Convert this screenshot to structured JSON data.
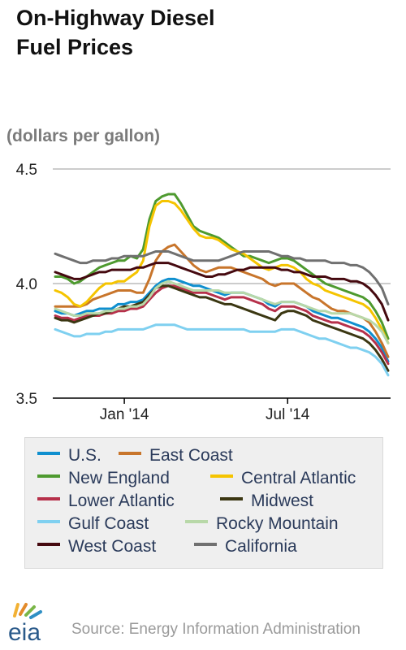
{
  "title_line1": "On-Highway Diesel",
  "title_line2": "Fuel Prices",
  "subtitle": "(dollars per gallon)",
  "source": "Source: Energy Information Administration",
  "logo_text": "eia",
  "chart_data": {
    "type": "line",
    "ylim": [
      3.5,
      4.5
    ],
    "y_ticks": [
      "3.5",
      "4.0",
      "4.5"
    ],
    "x_ticks": [
      "Jan '14",
      "Jul '14"
    ],
    "x_tick_index": [
      11,
      37
    ],
    "grid": true,
    "legend_placement": "bottom",
    "x": [
      0,
      1,
      2,
      3,
      4,
      5,
      6,
      7,
      8,
      9,
      10,
      11,
      12,
      13,
      14,
      15,
      16,
      17,
      18,
      19,
      20,
      21,
      22,
      23,
      24,
      25,
      26,
      27,
      28,
      29,
      30,
      31,
      32,
      33,
      34,
      35,
      36,
      37,
      38,
      39,
      40,
      41,
      42,
      43,
      44,
      45,
      46,
      47,
      48,
      49,
      50,
      51,
      52,
      53
    ],
    "series": [
      {
        "name": "U.S.",
        "color": "#0f8fcf",
        "values": [
          3.88,
          3.87,
          3.87,
          3.86,
          3.87,
          3.88,
          3.88,
          3.89,
          3.89,
          3.89,
          3.91,
          3.91,
          3.92,
          3.92,
          3.93,
          3.96,
          3.99,
          4.01,
          4.02,
          4.02,
          4.01,
          4.0,
          3.99,
          3.99,
          3.98,
          3.97,
          3.96,
          3.95,
          3.96,
          3.96,
          3.96,
          3.95,
          3.94,
          3.93,
          3.91,
          3.9,
          3.92,
          3.92,
          3.92,
          3.91,
          3.9,
          3.88,
          3.87,
          3.86,
          3.85,
          3.85,
          3.84,
          3.83,
          3.82,
          3.81,
          3.79,
          3.76,
          3.72,
          3.66
        ]
      },
      {
        "name": "East Coast",
        "color": "#c8752b",
        "values": [
          3.9,
          3.9,
          3.9,
          3.9,
          3.9,
          3.91,
          3.93,
          3.94,
          3.95,
          3.96,
          3.97,
          3.97,
          3.97,
          3.96,
          3.96,
          4.02,
          4.1,
          4.14,
          4.16,
          4.17,
          4.14,
          4.11,
          4.08,
          4.06,
          4.05,
          4.06,
          4.07,
          4.07,
          4.07,
          4.06,
          4.05,
          4.04,
          4.03,
          4.02,
          4.0,
          3.99,
          4.0,
          4.0,
          4.0,
          3.98,
          3.96,
          3.94,
          3.93,
          3.91,
          3.89,
          3.88,
          3.88,
          3.87,
          3.86,
          3.85,
          3.83,
          3.79,
          3.74,
          3.68
        ]
      },
      {
        "name": "New England",
        "color": "#4e9a2f",
        "values": [
          4.03,
          4.03,
          4.02,
          4.0,
          4.01,
          4.03,
          4.05,
          4.07,
          4.08,
          4.09,
          4.1,
          4.1,
          4.12,
          4.11,
          4.15,
          4.28,
          4.36,
          4.38,
          4.39,
          4.39,
          4.35,
          4.3,
          4.25,
          4.23,
          4.22,
          4.21,
          4.2,
          4.18,
          4.16,
          4.14,
          4.12,
          4.12,
          4.11,
          4.1,
          4.09,
          4.1,
          4.11,
          4.11,
          4.1,
          4.08,
          4.06,
          4.04,
          4.02,
          4.0,
          3.99,
          3.98,
          3.97,
          3.96,
          3.95,
          3.94,
          3.92,
          3.88,
          3.83,
          3.76
        ]
      },
      {
        "name": "Central Atlantic",
        "color": "#f5c400",
        "values": [
          3.97,
          3.96,
          3.94,
          3.91,
          3.9,
          3.92,
          3.95,
          3.98,
          4.0,
          4.0,
          4.01,
          4.01,
          4.03,
          4.05,
          4.1,
          4.25,
          4.34,
          4.36,
          4.36,
          4.35,
          4.32,
          4.28,
          4.24,
          4.21,
          4.2,
          4.2,
          4.19,
          4.17,
          4.15,
          4.14,
          4.13,
          4.11,
          4.09,
          4.07,
          4.06,
          4.07,
          4.08,
          4.08,
          4.07,
          4.05,
          4.02,
          4.0,
          3.99,
          3.97,
          3.96,
          3.95,
          3.94,
          3.93,
          3.92,
          3.91,
          3.89,
          3.85,
          3.8,
          3.74
        ]
      },
      {
        "name": "Lower Atlantic",
        "color": "#b6304a",
        "values": [
          3.86,
          3.85,
          3.85,
          3.84,
          3.85,
          3.86,
          3.86,
          3.86,
          3.87,
          3.87,
          3.88,
          3.88,
          3.89,
          3.89,
          3.9,
          3.93,
          3.96,
          3.98,
          3.99,
          3.99,
          3.98,
          3.97,
          3.96,
          3.96,
          3.96,
          3.95,
          3.94,
          3.93,
          3.94,
          3.94,
          3.94,
          3.93,
          3.92,
          3.91,
          3.89,
          3.88,
          3.9,
          3.9,
          3.9,
          3.89,
          3.88,
          3.86,
          3.85,
          3.84,
          3.83,
          3.83,
          3.82,
          3.81,
          3.8,
          3.79,
          3.77,
          3.74,
          3.7,
          3.65
        ]
      },
      {
        "name": "Midwest",
        "color": "#3b3712",
        "values": [
          3.85,
          3.84,
          3.84,
          3.83,
          3.84,
          3.85,
          3.86,
          3.87,
          3.87,
          3.88,
          3.89,
          3.9,
          3.9,
          3.91,
          3.92,
          3.95,
          3.98,
          3.99,
          3.99,
          3.98,
          3.97,
          3.96,
          3.95,
          3.94,
          3.94,
          3.93,
          3.92,
          3.91,
          3.91,
          3.9,
          3.89,
          3.88,
          3.87,
          3.86,
          3.85,
          3.84,
          3.87,
          3.88,
          3.88,
          3.87,
          3.86,
          3.84,
          3.83,
          3.82,
          3.81,
          3.8,
          3.79,
          3.78,
          3.77,
          3.76,
          3.74,
          3.71,
          3.67,
          3.62
        ]
      },
      {
        "name": "Gulf Coast",
        "color": "#7fd0f0",
        "values": [
          3.8,
          3.79,
          3.78,
          3.77,
          3.77,
          3.78,
          3.78,
          3.78,
          3.79,
          3.79,
          3.8,
          3.8,
          3.8,
          3.8,
          3.8,
          3.81,
          3.82,
          3.82,
          3.82,
          3.82,
          3.81,
          3.8,
          3.8,
          3.8,
          3.8,
          3.8,
          3.8,
          3.8,
          3.8,
          3.8,
          3.8,
          3.79,
          3.79,
          3.79,
          3.79,
          3.79,
          3.8,
          3.8,
          3.8,
          3.79,
          3.78,
          3.77,
          3.76,
          3.76,
          3.75,
          3.74,
          3.73,
          3.72,
          3.72,
          3.71,
          3.7,
          3.68,
          3.65,
          3.6
        ]
      },
      {
        "name": "Rocky Mountain",
        "color": "#b8d8a8",
        "values": [
          3.89,
          3.88,
          3.87,
          3.86,
          3.86,
          3.87,
          3.87,
          3.87,
          3.88,
          3.88,
          3.89,
          3.89,
          3.9,
          3.9,
          3.91,
          3.94,
          3.98,
          4.0,
          4.01,
          4.0,
          3.99,
          3.98,
          3.97,
          3.97,
          3.97,
          3.97,
          3.97,
          3.96,
          3.96,
          3.96,
          3.96,
          3.95,
          3.94,
          3.93,
          3.92,
          3.91,
          3.92,
          3.92,
          3.92,
          3.91,
          3.9,
          3.89,
          3.88,
          3.88,
          3.87,
          3.87,
          3.87,
          3.87,
          3.86,
          3.85,
          3.84,
          3.82,
          3.79,
          3.74
        ]
      },
      {
        "name": "West Coast",
        "color": "#45090f",
        "values": [
          4.05,
          4.04,
          4.03,
          4.02,
          4.02,
          4.03,
          4.04,
          4.05,
          4.05,
          4.06,
          4.06,
          4.06,
          4.06,
          4.07,
          4.07,
          4.08,
          4.09,
          4.09,
          4.09,
          4.08,
          4.07,
          4.06,
          4.05,
          4.04,
          4.03,
          4.03,
          4.04,
          4.04,
          4.05,
          4.06,
          4.06,
          4.07,
          4.07,
          4.07,
          4.07,
          4.07,
          4.06,
          4.06,
          4.05,
          4.05,
          4.04,
          4.03,
          4.03,
          4.03,
          4.02,
          4.02,
          4.02,
          4.01,
          4.01,
          4.0,
          3.98,
          3.95,
          3.91,
          3.84
        ]
      },
      {
        "name": "California",
        "color": "#707070",
        "values": [
          4.13,
          4.12,
          4.11,
          4.1,
          4.09,
          4.09,
          4.1,
          4.1,
          4.1,
          4.11,
          4.11,
          4.12,
          4.12,
          4.12,
          4.12,
          4.13,
          4.14,
          4.14,
          4.14,
          4.13,
          4.12,
          4.11,
          4.1,
          4.1,
          4.1,
          4.1,
          4.1,
          4.11,
          4.12,
          4.13,
          4.14,
          4.14,
          4.14,
          4.14,
          4.14,
          4.13,
          4.12,
          4.12,
          4.11,
          4.11,
          4.1,
          4.1,
          4.1,
          4.1,
          4.09,
          4.09,
          4.09,
          4.08,
          4.08,
          4.07,
          4.05,
          4.02,
          3.98,
          3.91
        ]
      }
    ]
  }
}
